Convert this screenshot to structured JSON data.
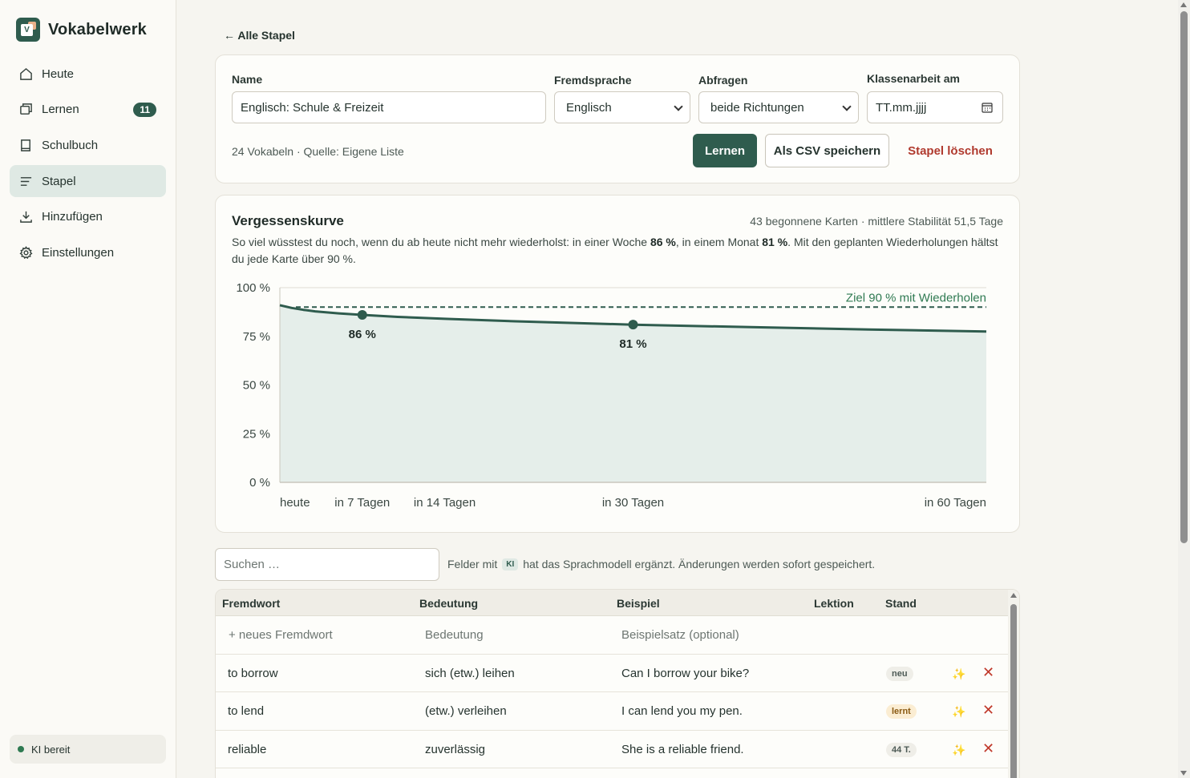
{
  "brand": {
    "name": "Vokabelwerk",
    "logo_letter": "V"
  },
  "nav": {
    "items": [
      {
        "label": "Heute",
        "icon": "home-icon"
      },
      {
        "label": "Lernen",
        "icon": "cards-icon",
        "badge": "11"
      },
      {
        "label": "Schulbuch",
        "icon": "book-icon"
      },
      {
        "label": "Stapel",
        "icon": "list-icon",
        "active": true
      },
      {
        "label": "Hinzufügen",
        "icon": "download-icon"
      },
      {
        "label": "Einstellungen",
        "icon": "gear-icon"
      }
    ]
  },
  "status": {
    "ki": "KI bereit"
  },
  "back_link": "← Alle Stapel",
  "deck": {
    "name_label": "Name",
    "name_value": "Englisch: Schule & Freizeit",
    "language_label": "Fremdsprache",
    "language_value": "Englisch",
    "direction_label": "Abfragen",
    "direction_value": "beide Richtungen",
    "exam_label": "Klassenarbeit am",
    "exam_placeholder": "TT.mm.jjjj",
    "info": "24 Vokabeln · Quelle: Eigene Liste",
    "learn_button": "Lernen",
    "csv_button": "Als CSV speichern",
    "delete_button": "Stapel löschen"
  },
  "curve": {
    "title": "Vergessenskurve",
    "meta": "43 begonnene Karten · mittlere Stabilität 51,5 Tage",
    "desc_part1": "So viel wüsstest du noch, wenn du ab heute nicht mehr wiederholst: in einer Woche ",
    "desc_week": "86 %",
    "desc_part2": ", in einem Monat ",
    "desc_month": "81 %",
    "desc_part3": ". Mit den geplanten Wiederholungen hältst du jede Karte über 90 %."
  },
  "chart_data": {
    "type": "area",
    "x": [
      0,
      1,
      2,
      3,
      5,
      7,
      10,
      14,
      20,
      30,
      40,
      50,
      60
    ],
    "y": [
      91,
      89.6,
      88.6,
      87.8,
      86.8,
      86,
      85,
      84,
      82.7,
      81,
      79.7,
      78.5,
      77.5
    ],
    "ylim": [
      0,
      100
    ],
    "xlim": [
      0,
      60
    ],
    "yticks": [
      "100 %",
      "75 %",
      "50 %",
      "25 %",
      "0 %"
    ],
    "ytick_values": [
      100,
      75,
      50,
      25,
      0
    ],
    "xticks": [
      "heute",
      "in 7 Tagen",
      "in 14 Tagen",
      "in 30 Tagen",
      "in 60 Tagen"
    ],
    "xtick_values": [
      0,
      7,
      14,
      30,
      60
    ],
    "markers": [
      {
        "x": 7,
        "y": 86,
        "label": "86 %"
      },
      {
        "x": 30,
        "y": 81,
        "label": "81 %"
      }
    ],
    "target": {
      "y": 90,
      "label": "Ziel 90 % mit Wiederholen"
    },
    "colors": {
      "line": "#2f5c4e",
      "fill": "#e5eeea",
      "grid": "#dedcd4"
    }
  },
  "search": {
    "placeholder": "Suchen …"
  },
  "hint": {
    "before": "Felder mit",
    "chip": "KI",
    "after": "hat das Sprachmodell ergänzt. Änderungen werden sofort gespeichert."
  },
  "table": {
    "headers": [
      "Fremdwort",
      "Bedeutung",
      "Beispiel",
      "Lektion",
      "Stand"
    ],
    "new_row": [
      "+ neues Fremdwort",
      "Bedeutung",
      "Beispielsatz (optional)"
    ],
    "rows": [
      {
        "word": "to borrow",
        "meaning": "sich (etw.) leihen",
        "example": "Can I borrow your bike?",
        "status": "neu"
      },
      {
        "word": "to lend",
        "meaning": "(etw.) verleihen",
        "example": "I can lend you my pen.",
        "status": "lernt"
      },
      {
        "word": "reliable",
        "meaning": "zuverlässig",
        "example": "She is a reliable friend.",
        "status": "44 T."
      }
    ]
  }
}
